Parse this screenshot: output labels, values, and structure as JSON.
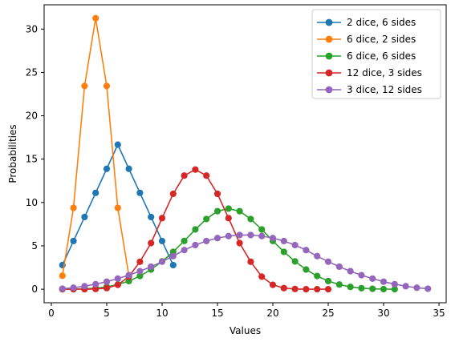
{
  "chart_data": {
    "type": "line",
    "xlabel": "Values",
    "ylabel": "Probabilities",
    "xlim": [
      -0.65,
      35.65
    ],
    "ylim": [
      -1.56,
      32.8
    ],
    "xticks": [
      0,
      5,
      10,
      15,
      20,
      25,
      30,
      35
    ],
    "yticks": [
      0,
      5,
      10,
      15,
      20,
      25,
      30
    ],
    "legend_position": "top-right",
    "grid": false,
    "series": [
      {
        "name": "2 dice, 6 sides",
        "color": "#1f77b4",
        "x": [
          1,
          2,
          3,
          4,
          5,
          6,
          7,
          8,
          9,
          10,
          11
        ],
        "values": [
          2.78,
          5.56,
          8.33,
          11.11,
          13.89,
          16.67,
          13.89,
          11.11,
          8.33,
          5.56,
          2.78
        ]
      },
      {
        "name": "6 dice, 2 sides",
        "color": "#ff7f0e",
        "x": [
          1,
          2,
          3,
          4,
          5,
          6,
          7
        ],
        "values": [
          1.56,
          9.38,
          23.44,
          31.25,
          23.44,
          9.38,
          1.56
        ]
      },
      {
        "name": "6 dice, 6 sides",
        "color": "#2ca02c",
        "x": [
          1,
          2,
          3,
          4,
          5,
          6,
          7,
          8,
          9,
          10,
          11,
          12,
          13,
          14,
          15,
          16,
          17,
          18,
          19,
          20,
          21,
          22,
          23,
          24,
          25,
          26,
          27,
          28,
          29,
          30,
          31
        ],
        "values": [
          0.0,
          0.01,
          0.05,
          0.12,
          0.27,
          0.54,
          0.94,
          1.52,
          2.27,
          3.21,
          4.31,
          5.57,
          6.89,
          8.1,
          9.0,
          9.3,
          9.0,
          8.1,
          6.89,
          5.57,
          4.31,
          3.21,
          2.27,
          1.52,
          0.94,
          0.54,
          0.27,
          0.12,
          0.05,
          0.01,
          0.0
        ]
      },
      {
        "name": "12 dice, 3 sides",
        "color": "#d62728",
        "x": [
          1,
          2,
          3,
          4,
          5,
          6,
          7,
          8,
          9,
          10,
          11,
          12,
          13,
          14,
          15,
          16,
          17,
          18,
          19,
          20,
          21,
          22,
          23,
          24,
          25
        ],
        "values": [
          0.0,
          0.0,
          0.0,
          0.03,
          0.13,
          0.51,
          1.45,
          3.17,
          5.32,
          8.2,
          11.0,
          13.1,
          13.8,
          13.1,
          11.0,
          8.2,
          5.32,
          3.17,
          1.45,
          0.51,
          0.13,
          0.03,
          0.0,
          0.0,
          0.0
        ]
      },
      {
        "name": "3 dice, 12 sides",
        "color": "#9467bd",
        "x": [
          1,
          2,
          3,
          4,
          5,
          6,
          7,
          8,
          9,
          10,
          11,
          12,
          13,
          14,
          15,
          16,
          17,
          18,
          19,
          20,
          21,
          22,
          23,
          24,
          25,
          26,
          27,
          28,
          29,
          30,
          31,
          32,
          33,
          34
        ],
        "values": [
          0.06,
          0.17,
          0.35,
          0.58,
          0.87,
          1.22,
          1.62,
          2.08,
          2.6,
          3.18,
          3.82,
          4.51,
          5.09,
          5.56,
          5.9,
          6.13,
          6.25,
          6.25,
          6.13,
          5.9,
          5.56,
          5.09,
          4.51,
          3.82,
          3.18,
          2.6,
          2.08,
          1.62,
          1.22,
          0.87,
          0.58,
          0.35,
          0.17,
          0.06
        ]
      }
    ]
  }
}
